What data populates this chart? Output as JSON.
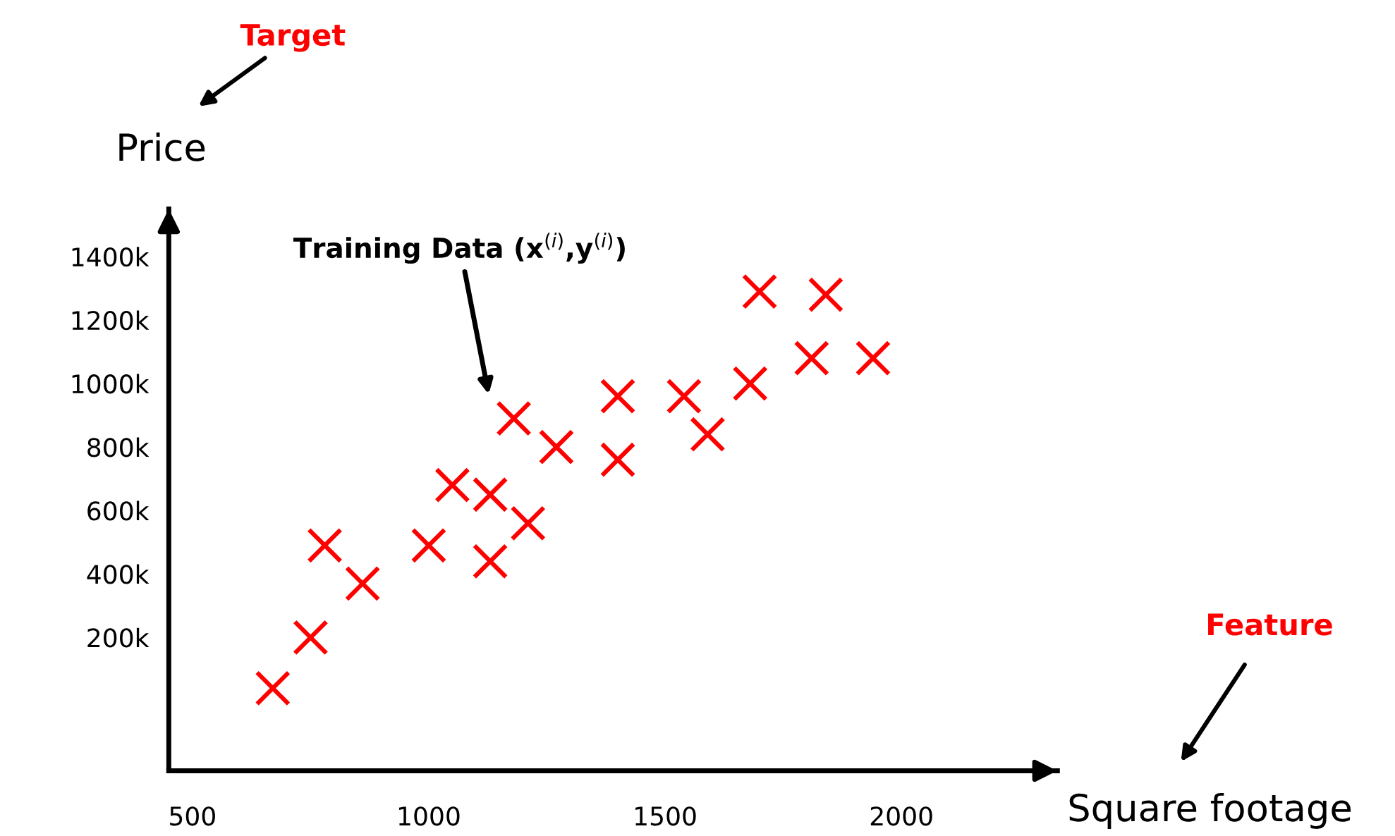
{
  "chart_data": {
    "type": "scatter",
    "xlabel": "Square footage",
    "ylabel": "Price",
    "x": [
      670,
      750,
      780,
      860,
      1000,
      1050,
      1130,
      1130,
      1210,
      1180,
      1270,
      1400,
      1400,
      1540,
      1590,
      1680,
      1700,
      1810,
      1840,
      1940
    ],
    "series": [
      {
        "color": "#ff0000",
        "values": [
          40,
          200,
          490,
          370,
          490,
          680,
          440,
          650,
          560,
          890,
          800,
          760,
          960,
          960,
          840,
          1000,
          1290,
          1080,
          1280,
          1080
        ]
      }
    ],
    "marker": "cross",
    "grid": false,
    "xlim": [
      450,
      2330
    ],
    "ylim": [
      -220,
      1550
    ],
    "xticks": [
      500,
      1000,
      1500,
      2000
    ],
    "yticks": [
      {
        "value": 200,
        "label": "200k"
      },
      {
        "value": 400,
        "label": "400k"
      },
      {
        "value": 600,
        "label": "600k"
      },
      {
        "value": 800,
        "label": "800k"
      },
      {
        "value": 1000,
        "label": "1000k"
      },
      {
        "value": 1200,
        "label": "1200k"
      },
      {
        "value": 1400,
        "label": "1400k"
      }
    ],
    "annotations": [
      "Training Data (x$^{(i)}$,y$^{(i)}$)",
      "Target",
      "Feature"
    ]
  }
}
